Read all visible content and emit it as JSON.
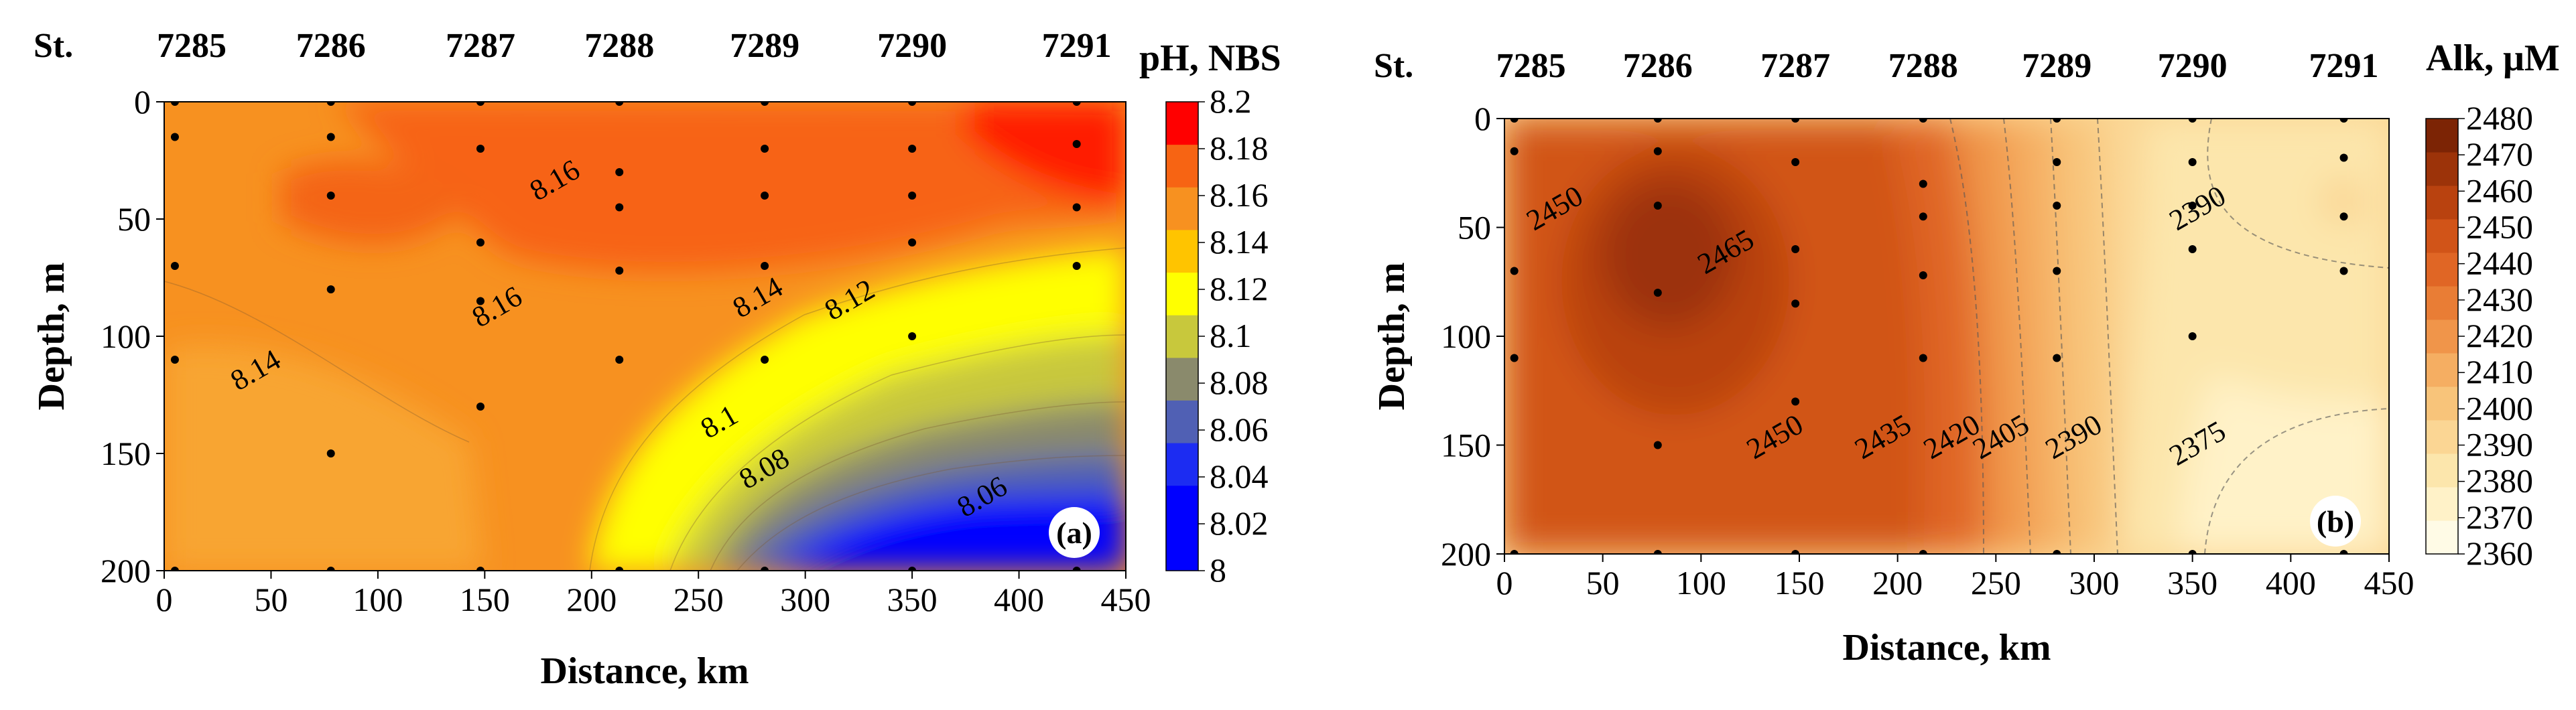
{
  "chart_data": [
    {
      "type": "heatmap",
      "panel": "(a)",
      "title": "pH, NBS",
      "xlabel": "Distance, km",
      "ylabel": "Depth, m",
      "xlim": [
        0,
        450
      ],
      "ylim": [
        200,
        0
      ],
      "x_ticks": [
        0,
        50,
        100,
        150,
        200,
        250,
        300,
        350,
        400,
        450
      ],
      "y_ticks": [
        0,
        50,
        100,
        150,
        200
      ],
      "stations": [
        {
          "name": "7285",
          "distance": 5
        },
        {
          "name": "7286",
          "distance": 78
        },
        {
          "name": "7287",
          "distance": 148
        },
        {
          "name": "7288",
          "distance": 213
        },
        {
          "name": "7289",
          "distance": 281
        },
        {
          "name": "7290",
          "distance": 350
        },
        {
          "name": "7291",
          "distance": 427
        }
      ],
      "station_prefix": "St.",
      "sample_depths": [
        [
          5,
          [
            0,
            15,
            70,
            110,
            200
          ]
        ],
        [
          78,
          [
            0,
            15,
            40,
            80,
            150,
            200
          ]
        ],
        [
          148,
          [
            0,
            20,
            60,
            85,
            130,
            200
          ]
        ],
        [
          213,
          [
            0,
            30,
            45,
            72,
            110,
            200
          ]
        ],
        [
          281,
          [
            0,
            20,
            40,
            70,
            110,
            200
          ]
        ],
        [
          350,
          [
            0,
            20,
            40,
            60,
            100,
            200
          ]
        ],
        [
          427,
          [
            0,
            18,
            45,
            70,
            200
          ]
        ]
      ],
      "colorbar": {
        "levels": [
          8,
          8.02,
          8.04,
          8.06,
          8.08,
          8.1,
          8.12,
          8.14,
          8.16,
          8.18,
          8.2
        ],
        "tick_labels": [
          "8.2",
          "8.18",
          "8.16",
          "8.14",
          "8.12",
          "8.1",
          "8.08",
          "8.06",
          "8.04",
          "8.02",
          "8"
        ],
        "colors": [
          "#0000ff",
          "#0000ff",
          "#1c2cf2",
          "#5060b4",
          "#8a8a6c",
          "#c8c83c",
          "#ffff00",
          "#ffc400",
          "#f79120",
          "#f76413",
          "#ff0000"
        ]
      },
      "contour_labels": [
        {
          "text": "8.16",
          "x": 185,
          "y": 37
        },
        {
          "text": "8.16",
          "x": 158,
          "y": 91
        },
        {
          "text": "8.14",
          "x": 45,
          "y": 118
        },
        {
          "text": "8.14",
          "x": 280,
          "y": 87
        },
        {
          "text": "8.12",
          "x": 323,
          "y": 88
        },
        {
          "text": "8.1",
          "x": 262,
          "y": 140
        },
        {
          "text": "8.08",
          "x": 283,
          "y": 160
        },
        {
          "text": "8.06",
          "x": 385,
          "y": 172
        }
      ]
    },
    {
      "type": "heatmap",
      "panel": "(b)",
      "title": "Alk, μM",
      "xlabel": "Distance, km",
      "ylabel": "Depth, m",
      "xlim": [
        0,
        450
      ],
      "ylim": [
        200,
        0
      ],
      "x_ticks": [
        0,
        50,
        100,
        150,
        200,
        250,
        300,
        350,
        400,
        450
      ],
      "y_ticks": [
        0,
        50,
        100,
        150,
        200
      ],
      "stations": [
        {
          "name": "7285",
          "distance": 5
        },
        {
          "name": "7286",
          "distance": 78
        },
        {
          "name": "7287",
          "distance": 148
        },
        {
          "name": "7288",
          "distance": 213
        },
        {
          "name": "7289",
          "distance": 281
        },
        {
          "name": "7290",
          "distance": 350
        },
        {
          "name": "7291",
          "distance": 427
        }
      ],
      "station_prefix": "St.",
      "sample_depths": [
        [
          5,
          [
            0,
            15,
            70,
            110,
            200
          ]
        ],
        [
          78,
          [
            0,
            15,
            40,
            80,
            150,
            200
          ]
        ],
        [
          148,
          [
            0,
            20,
            60,
            85,
            130,
            200
          ]
        ],
        [
          213,
          [
            0,
            30,
            45,
            72,
            110,
            200
          ]
        ],
        [
          281,
          [
            0,
            20,
            40,
            70,
            110,
            200
          ]
        ],
        [
          350,
          [
            0,
            20,
            40,
            60,
            100,
            200
          ]
        ],
        [
          427,
          [
            0,
            18,
            45,
            70,
            200
          ]
        ]
      ],
      "colorbar": {
        "levels": [
          2360,
          2370,
          2380,
          2390,
          2400,
          2410,
          2420,
          2430,
          2440,
          2450,
          2460,
          2470,
          2480
        ],
        "tick_labels": [
          "2480",
          "2470",
          "2460",
          "2450",
          "2440",
          "2430",
          "2420",
          "2410",
          "2400",
          "2390",
          "2380",
          "2370",
          "2360"
        ],
        "colors": [
          "#fffbe6",
          "#fff2c8",
          "#fce6ac",
          "#fbd694",
          "#f8c47a",
          "#f5ae62",
          "#f0954a",
          "#e97d35",
          "#e06625",
          "#d15418",
          "#b9420f",
          "#9c3309",
          "#7c2405"
        ]
      },
      "contour_labels": [
        {
          "text": "2450",
          "x": 28,
          "y": 45
        },
        {
          "text": "2465",
          "x": 115,
          "y": 65
        },
        {
          "text": "2450",
          "x": 140,
          "y": 150
        },
        {
          "text": "2435",
          "x": 195,
          "y": 150
        },
        {
          "text": "2420",
          "x": 230,
          "y": 150
        },
        {
          "text": "2405",
          "x": 255,
          "y": 150
        },
        {
          "text": "2390",
          "x": 292,
          "y": 150
        },
        {
          "text": "2390",
          "x": 355,
          "y": 45
        },
        {
          "text": "2375",
          "x": 355,
          "y": 153
        }
      ]
    }
  ]
}
